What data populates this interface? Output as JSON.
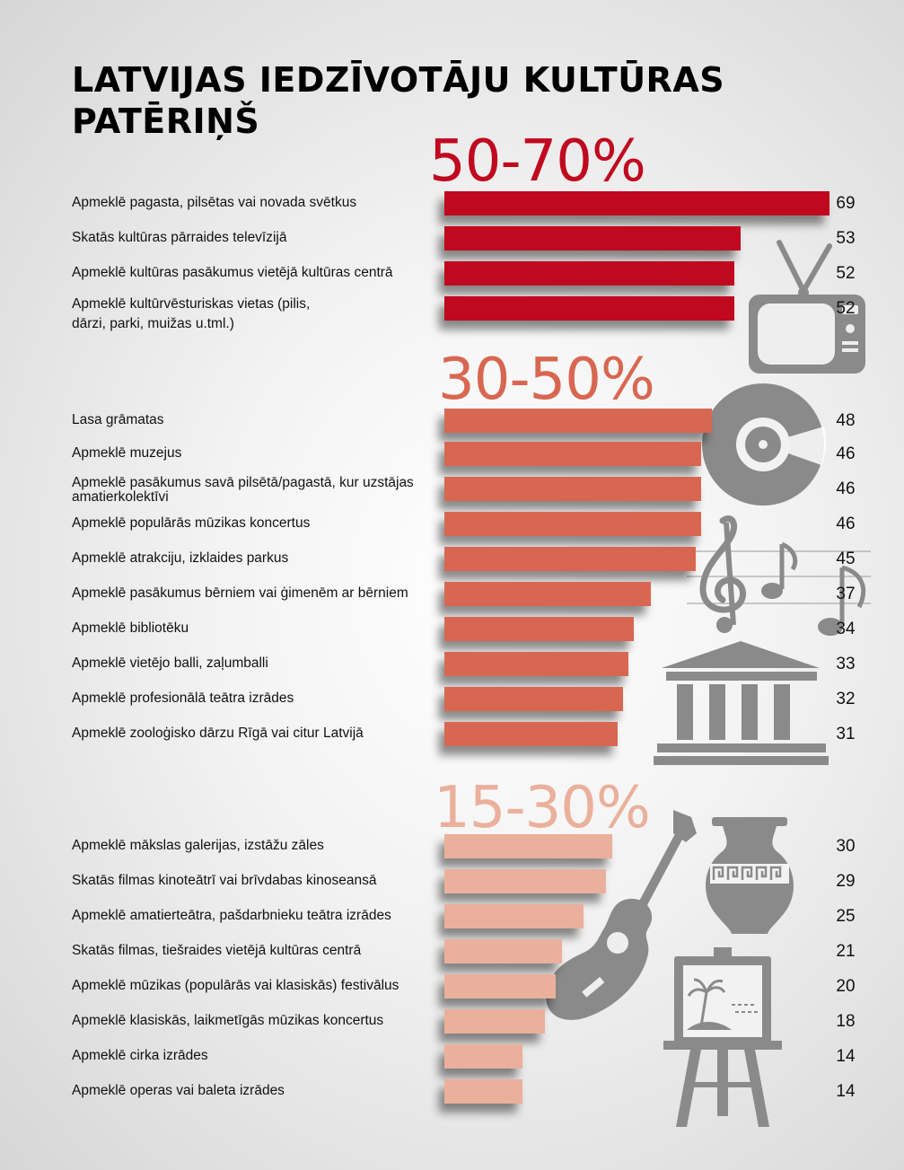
{
  "title": "LATVIJAS IEDZĪVOTĀJU KULTŪRAS PATĒRIŅŠ",
  "colors": {
    "group1": "#c0091f",
    "group2": "#d86752",
    "group3": "#eab09c",
    "icon": "#8a8a8a"
  },
  "chart_data": {
    "type": "bar",
    "orientation": "horizontal",
    "title": "LATVIJAS IEDZĪVOTĀJU KULTŪRAS PATĒRIŅŠ",
    "xlim": [
      0,
      69
    ],
    "groups": [
      {
        "label": "50-70%",
        "color": "#c0091f",
        "items": [
          {
            "label": "Apmeklē pagasta, pilsētas vai novada svētkus",
            "value": 69
          },
          {
            "label": "Skatās kultūras pārraides televīzijā",
            "value": 53
          },
          {
            "label": "Apmeklē kultūras pasākumus vietējā kultūras centrā",
            "value": 52
          },
          {
            "label": "Apmeklē kultūrvēsturiskas vietas (pilis, dārzi, parki, muižas u.tml.)",
            "value": 52
          }
        ]
      },
      {
        "label": "30-50%",
        "color": "#d86752",
        "items": [
          {
            "label": "Lasa grāmatas",
            "value": 48
          },
          {
            "label": "Apmeklē muzejus",
            "value": 46
          },
          {
            "label": "Apmeklē pasākumus savā pilsētā/pagastā, kur uzstājas amatierkolektīvi",
            "value": 46
          },
          {
            "label": "Apmeklē populārās mūzikas koncertus",
            "value": 46
          },
          {
            "label": "Apmeklē atrakciju, izklaides parkus",
            "value": 45
          },
          {
            "label": "Apmeklē pasākumus bērniem vai ģimenēm ar bērniem",
            "value": 37
          },
          {
            "label": "Apmeklē bibliotēku",
            "value": 34
          },
          {
            "label": "Apmeklē vietējo balli, zaļumballi",
            "value": 33
          },
          {
            "label": "Apmeklē profesionālā teātra izrādes",
            "value": 32
          },
          {
            "label": "Apmeklē zooloģisko dārzu Rīgā vai citur Latvijā",
            "value": 31
          }
        ]
      },
      {
        "label": "15-30%",
        "color": "#eab09c",
        "items": [
          {
            "label": "Apmeklē mākslas galerijas, izstāžu zāles",
            "value": 30
          },
          {
            "label": "Skatās filmas kinoteātrī vai brīvdabas kinoseansā",
            "value": 29
          },
          {
            "label": "Apmeklē amatierteātra, pašdarbnieku teātra izrādes",
            "value": 25
          },
          {
            "label": "Skatās filmas, tiešraides vietējā kultūras centrā",
            "value": 21
          },
          {
            "label": "Apmeklē mūzikas (populārās vai klasiskās) festivālus",
            "value": 20
          },
          {
            "label": "Apmeklē klasiskās, laikmetīgās mūzikas koncertus",
            "value": 18
          },
          {
            "label": "Apmeklē cirka izrādes",
            "value": 14
          },
          {
            "label": "Apmeklē operas vai baleta izrādes",
            "value": 14
          }
        ]
      }
    ]
  },
  "icons": [
    "tv-icon",
    "vinyl-record-icon",
    "music-notes-icon",
    "theater-building-icon",
    "vase-icon",
    "guitar-icon",
    "easel-painting-icon"
  ]
}
